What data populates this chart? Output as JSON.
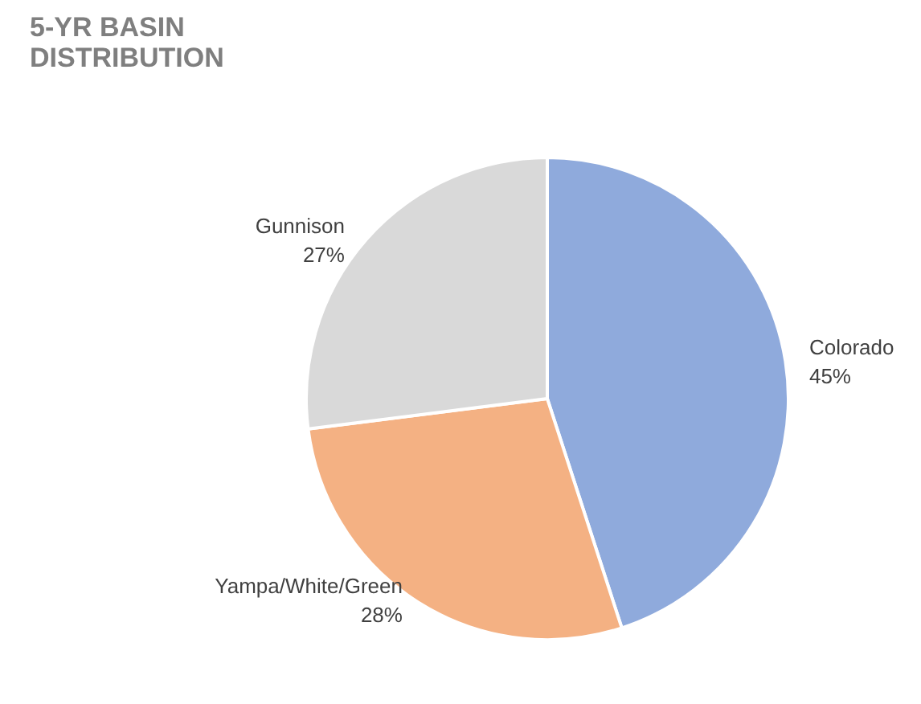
{
  "chart_data": {
    "type": "pie",
    "title": "5-YR BASIN DISTRIBUTION",
    "categories": [
      "Colorado",
      "Yampa/White/Green",
      "Gunnison"
    ],
    "values": [
      45,
      28,
      27
    ],
    "value_labels": [
      "45%",
      "28%",
      "27%"
    ],
    "colors": [
      "#8faadc",
      "#f4b183",
      "#d9d9d9"
    ]
  }
}
